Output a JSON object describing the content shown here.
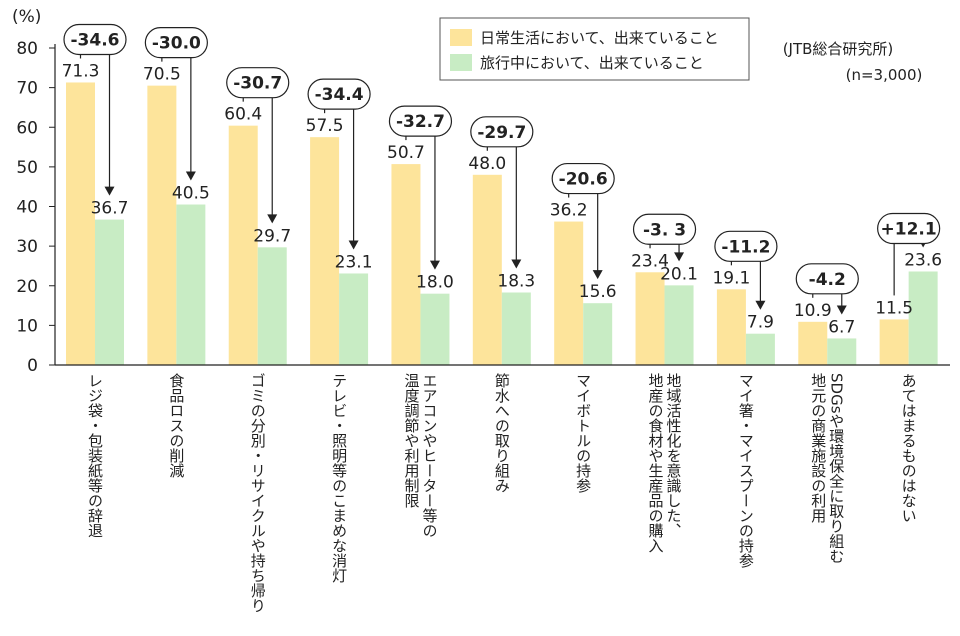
{
  "chart_data": {
    "type": "bar",
    "y_unit_label": "(%)",
    "ylim": [
      0,
      80
    ],
    "yticks": [
      0,
      10,
      20,
      30,
      40,
      50,
      60,
      70,
      80
    ],
    "grid": false,
    "legend_position": "top-right",
    "categories": [
      "レジ袋・包装紙等の辞退",
      "食品ロスの削減",
      "ゴミの分別・リサイクルや持ち帰り",
      "テレビ・照明等のこまめな消灯",
      "エアコンやヒーター等の温度調節や利用制限",
      "節水への取り組み",
      "マイボトルの持参",
      "地域活性化を意識した、地産の食材や生産品の購入",
      "マイ箸・マイスプーンの持参",
      "SDGsや環境保全に取り組む地元の商業施設の利用",
      "あてはまるものはない"
    ],
    "category_lines": [
      [
        "レジ袋・包装紙等の辞退"
      ],
      [
        "食品ロスの削減"
      ],
      [
        "ゴミの分別・リサイクルや持ち帰り"
      ],
      [
        "テレビ・照明等のこまめな消灯"
      ],
      [
        "エアコンやヒーター等の",
        "温度調節や利用制限"
      ],
      [
        "節水への取り組み"
      ],
      [
        "マイボトルの持参"
      ],
      [
        "地域活性化を意識した、",
        "地産の食材や生産品の購入"
      ],
      [
        "マイ箸・マイスプーンの持参"
      ],
      [
        "SDGsや環境保全に取り組む",
        "地元の商業施設の利用"
      ],
      [
        "あてはまるものはない"
      ]
    ],
    "series": [
      {
        "name": "日常生活において、出来ていること",
        "color": "#fde49b",
        "values": [
          71.3,
          70.5,
          60.4,
          57.5,
          50.7,
          48.0,
          36.2,
          23.4,
          19.1,
          10.9,
          11.5
        ],
        "labels": [
          "71.3",
          "70.5",
          "60.4",
          "57.5",
          "50.7",
          "48.0",
          "36.2",
          "23.4",
          "19.1",
          "10.9",
          "11.5"
        ]
      },
      {
        "name": "旅行中において、出来ていること",
        "color": "#c8ecc4",
        "values": [
          36.7,
          40.5,
          29.7,
          23.1,
          18.0,
          18.3,
          15.6,
          20.1,
          7.9,
          6.7,
          23.6
        ],
        "labels": [
          "36.7",
          "40.5",
          "29.7",
          "23.1",
          "18.0",
          "18.3",
          "15.6",
          "20.1",
          "7.9",
          "6.7",
          "23.6"
        ]
      }
    ],
    "differences": [
      "-34.6",
      "-30.0",
      "-30.7",
      "-34.4",
      "-32.7",
      "-29.7",
      "-20.6",
      "-3. 3",
      "-11.2",
      "-4.2",
      "+12.1"
    ],
    "source_note": "(JTB総合研究所)",
    "sample_note": "(n=3,000)"
  }
}
